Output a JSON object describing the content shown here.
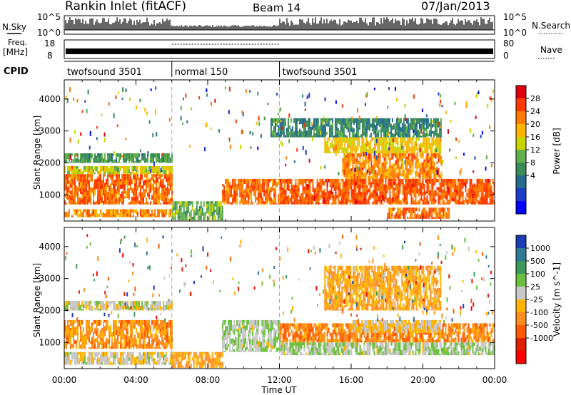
{
  "header": {
    "station": "Rankin Inlet (fitACF)",
    "beam": "Beam 14",
    "date": "07/Jan/2013"
  },
  "strip_labels": {
    "nsky": "N.Sky",
    "nsearch": "N.Search",
    "freq_top": "Freq.",
    "freq_unit": "[MHz]",
    "nave": "Nave",
    "cpid": "CPID",
    "nsky_ticks": [
      "10^5",
      "10^0"
    ],
    "nsearch_ticks": [
      "10^5",
      "10^0"
    ],
    "freq_ticks": [
      "18",
      "8"
    ],
    "nave_ticks": [
      "80",
      "0"
    ]
  },
  "cpid_segments": [
    {
      "label": "twofsound 3501",
      "start_hour": 0,
      "end_hour": 6
    },
    {
      "label": "normal 150",
      "start_hour": 6,
      "end_hour": 12
    },
    {
      "label": "twofsound 3501",
      "start_hour": 12,
      "end_hour": 24
    }
  ],
  "axes": {
    "xlabel": "Time UT",
    "ylabel": "Slant Range [km]",
    "x_ticks": [
      "00:00",
      "04:00",
      "08:00",
      "12:00",
      "16:00",
      "20:00",
      "00:00"
    ],
    "y_ticks": [
      "1000",
      "2000",
      "3000",
      "4000"
    ]
  },
  "colorbars": {
    "power": {
      "label": "Power [dB]",
      "ticks": [
        "28",
        "24",
        "20",
        "16",
        "12",
        "8",
        "4"
      ],
      "colors": [
        "#e0000f",
        "#ff3a00",
        "#ff7a00",
        "#ffb400",
        "#c8d400",
        "#5fb04d",
        "#3c8c5a",
        "#246b8c",
        "#1a3cc8",
        "#0000ff"
      ]
    },
    "velocity": {
      "label": "Velocity [m s^-1]",
      "ticks": [
        "1000",
        "500",
        "100",
        "25",
        "-25",
        "-100",
        "-500",
        "-1000"
      ],
      "colors": [
        "#1a3cb4",
        "#2f7896",
        "#3c9a5a",
        "#6cc03c",
        "#c8c8c8",
        "#ffb400",
        "#ff8c1e",
        "#ff5a00",
        "#e01e00",
        "#ff0000"
      ]
    }
  },
  "chart_data": [
    {
      "type": "heatmap",
      "title": "Power",
      "x_range_hours": [
        0,
        24
      ],
      "y_range_km": [
        180,
        4600
      ],
      "colorbar_label": "Power [dB]",
      "color_range": [
        0,
        32
      ],
      "bands": [
        {
          "start_hour": 0.0,
          "end_hour": 6.0,
          "range_km": [
            700,
            1650
          ],
          "value": 26
        },
        {
          "start_hour": 0.0,
          "end_hour": 6.0,
          "range_km": [
            1650,
            1900
          ],
          "value": 18
        },
        {
          "start_hour": 0.0,
          "end_hour": 6.0,
          "range_km": [
            2000,
            2300
          ],
          "value": 12
        },
        {
          "start_hour": 0.0,
          "end_hour": 6.0,
          "range_km": [
            300,
            550
          ],
          "value": 24
        },
        {
          "start_hour": 6.0,
          "end_hour": 8.8,
          "range_km": [
            200,
            800
          ],
          "value": 14
        },
        {
          "start_hour": 8.8,
          "end_hour": 12.0,
          "range_km": [
            700,
            1500
          ],
          "value": 26
        },
        {
          "start_hour": 12.0,
          "end_hour": 24.0,
          "range_km": [
            700,
            1500
          ],
          "value": 27
        },
        {
          "start_hour": 15.5,
          "end_hour": 21.0,
          "range_km": [
            1500,
            2300
          ],
          "value": 24
        },
        {
          "start_hour": 14.5,
          "end_hour": 21.0,
          "range_km": [
            2300,
            2800
          ],
          "value": 20
        },
        {
          "start_hour": 11.5,
          "end_hour": 21.0,
          "range_km": [
            2800,
            3400
          ],
          "value": 10
        },
        {
          "start_hour": 18.0,
          "end_hour": 21.5,
          "range_km": [
            250,
            600
          ],
          "value": 26
        }
      ]
    },
    {
      "type": "heatmap",
      "title": "Velocity",
      "x_range_hours": [
        0,
        24
      ],
      "y_range_km": [
        180,
        4600
      ],
      "colorbar_label": "Velocity [m s^-1]",
      "color_range": [
        -1000,
        1000
      ],
      "bands": [
        {
          "start_hour": 0.0,
          "end_hour": 6.0,
          "range_km": [
            800,
            1700
          ],
          "value": -300
        },
        {
          "start_hour": 0.0,
          "end_hour": 6.0,
          "range_km": [
            2000,
            2300
          ],
          "value": 100
        },
        {
          "start_hour": 0.0,
          "end_hour": 6.0,
          "range_km": [
            300,
            700
          ],
          "value": 60
        },
        {
          "start_hour": 6.0,
          "end_hour": 8.8,
          "range_km": [
            200,
            700
          ],
          "value": -200
        },
        {
          "start_hour": 8.8,
          "end_hour": 12.0,
          "range_km": [
            700,
            1700
          ],
          "value": 200
        },
        {
          "start_hour": 12.0,
          "end_hour": 24.0,
          "range_km": [
            1000,
            1600
          ],
          "value": -350
        },
        {
          "start_hour": 16.0,
          "end_hour": 21.0,
          "range_km": [
            1300,
            1700
          ],
          "value": 0
        },
        {
          "start_hour": 12.0,
          "end_hour": 24.0,
          "range_km": [
            600,
            1000
          ],
          "value": 200
        },
        {
          "start_hour": 14.5,
          "end_hour": 21.0,
          "range_km": [
            2000,
            3400
          ],
          "value": -200
        }
      ]
    }
  ]
}
